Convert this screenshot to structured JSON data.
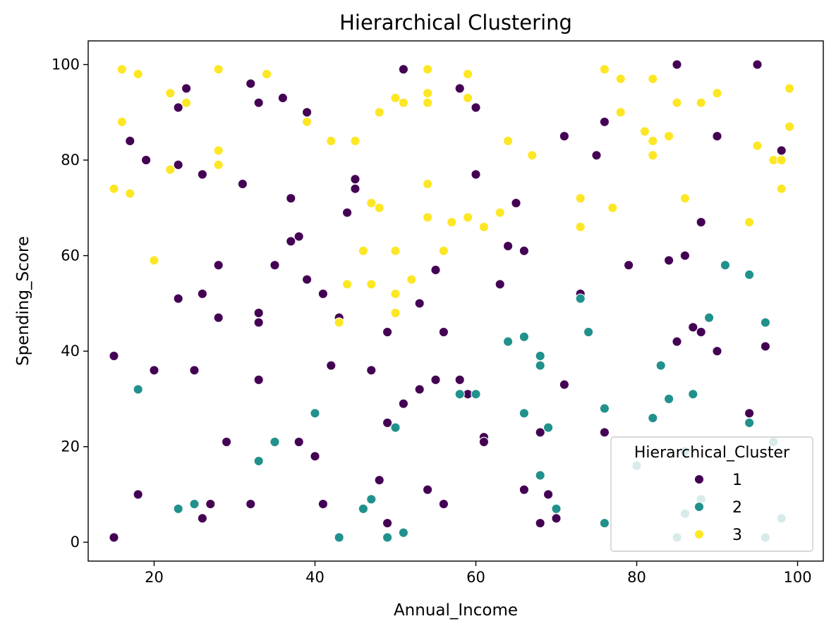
{
  "chart_data": {
    "type": "scatter",
    "title": "Hierarchical Clustering",
    "xlabel": "Annual_Income",
    "ylabel": "Spending_Score",
    "xlim": [
      11.8,
      103.2
    ],
    "ylim": [
      -3.95,
      104.95
    ],
    "xticks": [
      20,
      40,
      60,
      80,
      100
    ],
    "yticks": [
      0,
      20,
      40,
      60,
      80,
      100
    ],
    "xtick_labels": [
      "20",
      "40",
      "60",
      "80",
      "100"
    ],
    "ytick_labels": [
      "0",
      "20",
      "40",
      "60",
      "80",
      "100"
    ],
    "grid": false,
    "legend": {
      "title": "Hierarchical_Cluster",
      "placement": "lower-right"
    },
    "series": [
      {
        "name": "1",
        "color": "#440154",
        "points": [
          [
            15,
            1
          ],
          [
            15,
            39
          ],
          [
            17,
            84
          ],
          [
            18,
            10
          ],
          [
            19,
            80
          ],
          [
            20,
            36
          ],
          [
            23,
            91
          ],
          [
            23,
            79
          ],
          [
            23,
            51
          ],
          [
            24,
            95
          ],
          [
            25,
            36
          ],
          [
            26,
            77
          ],
          [
            26,
            52
          ],
          [
            26,
            5
          ],
          [
            27,
            8
          ],
          [
            28,
            58
          ],
          [
            28,
            47
          ],
          [
            29,
            21
          ],
          [
            31,
            75
          ],
          [
            32,
            96
          ],
          [
            32,
            8
          ],
          [
            33,
            92
          ],
          [
            33,
            48
          ],
          [
            33,
            46
          ],
          [
            33,
            34
          ],
          [
            35,
            58
          ],
          [
            36,
            93
          ],
          [
            37,
            72
          ],
          [
            37,
            63
          ],
          [
            38,
            64
          ],
          [
            38,
            21
          ],
          [
            39,
            90
          ],
          [
            39,
            55
          ],
          [
            40,
            18
          ],
          [
            41,
            52
          ],
          [
            41,
            8
          ],
          [
            42,
            37
          ],
          [
            43,
            47
          ],
          [
            44,
            69
          ],
          [
            45,
            76
          ],
          [
            45,
            74
          ],
          [
            47,
            36
          ],
          [
            48,
            13
          ],
          [
            49,
            44
          ],
          [
            49,
            25
          ],
          [
            49,
            4
          ],
          [
            51,
            99
          ],
          [
            51,
            29
          ],
          [
            53,
            50
          ],
          [
            53,
            32
          ],
          [
            54,
            11
          ],
          [
            55,
            57
          ],
          [
            55,
            34
          ],
          [
            56,
            44
          ],
          [
            56,
            8
          ],
          [
            58,
            95
          ],
          [
            58,
            34
          ],
          [
            59,
            31
          ],
          [
            60,
            91
          ],
          [
            60,
            77
          ],
          [
            61,
            22
          ],
          [
            61,
            21
          ],
          [
            63,
            54
          ],
          [
            64,
            62
          ],
          [
            65,
            71
          ],
          [
            66,
            61
          ],
          [
            66,
            11
          ],
          [
            68,
            23
          ],
          [
            68,
            4
          ],
          [
            69,
            10
          ],
          [
            70,
            5
          ],
          [
            71,
            85
          ],
          [
            71,
            33
          ],
          [
            73,
            52
          ],
          [
            75,
            81
          ],
          [
            76,
            88
          ],
          [
            76,
            23
          ],
          [
            79,
            58
          ],
          [
            84,
            59
          ],
          [
            85,
            100
          ],
          [
            85,
            42
          ],
          [
            86,
            60
          ],
          [
            87,
            45
          ],
          [
            88,
            67
          ],
          [
            88,
            44
          ],
          [
            90,
            85
          ],
          [
            90,
            40
          ],
          [
            94,
            27
          ],
          [
            95,
            100
          ],
          [
            96,
            41
          ],
          [
            98,
            82
          ]
        ]
      },
      {
        "name": "2",
        "color": "#21918c",
        "points": [
          [
            18,
            32
          ],
          [
            23,
            7
          ],
          [
            25,
            8
          ],
          [
            33,
            17
          ],
          [
            35,
            21
          ],
          [
            40,
            27
          ],
          [
            43,
            1
          ],
          [
            46,
            7
          ],
          [
            47,
            9
          ],
          [
            49,
            1
          ],
          [
            50,
            24
          ],
          [
            51,
            2
          ],
          [
            58,
            31
          ],
          [
            60,
            31
          ],
          [
            64,
            42
          ],
          [
            66,
            43
          ],
          [
            66,
            27
          ],
          [
            68,
            39
          ],
          [
            68,
            37
          ],
          [
            68,
            14
          ],
          [
            69,
            24
          ],
          [
            70,
            7
          ],
          [
            73,
            51
          ],
          [
            74,
            44
          ],
          [
            76,
            28
          ],
          [
            76,
            4
          ],
          [
            80,
            16
          ],
          [
            82,
            26
          ],
          [
            83,
            37
          ],
          [
            84,
            30
          ],
          [
            85,
            1
          ],
          [
            86,
            19
          ],
          [
            86,
            6
          ],
          [
            87,
            31
          ],
          [
            88,
            9
          ],
          [
            89,
            47
          ],
          [
            91,
            58
          ],
          [
            94,
            56
          ],
          [
            94,
            25
          ],
          [
            96,
            46
          ],
          [
            96,
            1
          ],
          [
            97,
            21
          ],
          [
            98,
            5
          ]
        ]
      },
      {
        "name": "3",
        "color": "#fde725",
        "points": [
          [
            15,
            74
          ],
          [
            16,
            99
          ],
          [
            16,
            88
          ],
          [
            17,
            73
          ],
          [
            18,
            98
          ],
          [
            20,
            59
          ],
          [
            22,
            94
          ],
          [
            22,
            78
          ],
          [
            24,
            92
          ],
          [
            28,
            99
          ],
          [
            28,
            82
          ],
          [
            28,
            79
          ],
          [
            34,
            98
          ],
          [
            39,
            88
          ],
          [
            42,
            84
          ],
          [
            43,
            46
          ],
          [
            44,
            54
          ],
          [
            45,
            84
          ],
          [
            46,
            61
          ],
          [
            47,
            71
          ],
          [
            47,
            54
          ],
          [
            48,
            90
          ],
          [
            48,
            70
          ],
          [
            50,
            93
          ],
          [
            50,
            61
          ],
          [
            50,
            52
          ],
          [
            50,
            48
          ],
          [
            51,
            92
          ],
          [
            52,
            55
          ],
          [
            54,
            99
          ],
          [
            54,
            94
          ],
          [
            54,
            92
          ],
          [
            54,
            75
          ],
          [
            54,
            68
          ],
          [
            56,
            61
          ],
          [
            57,
            67
          ],
          [
            59,
            98
          ],
          [
            59,
            93
          ],
          [
            59,
            68
          ],
          [
            61,
            66
          ],
          [
            63,
            69
          ],
          [
            64,
            84
          ],
          [
            67,
            81
          ],
          [
            73,
            72
          ],
          [
            73,
            66
          ],
          [
            76,
            99
          ],
          [
            77,
            70
          ],
          [
            78,
            97
          ],
          [
            78,
            90
          ],
          [
            81,
            86
          ],
          [
            82,
            97
          ],
          [
            82,
            84
          ],
          [
            82,
            81
          ],
          [
            84,
            85
          ],
          [
            85,
            92
          ],
          [
            86,
            72
          ],
          [
            88,
            92
          ],
          [
            90,
            94
          ],
          [
            94,
            67
          ],
          [
            95,
            83
          ],
          [
            97,
            80
          ],
          [
            98,
            80
          ],
          [
            98,
            74
          ],
          [
            99,
            95
          ],
          [
            99,
            87
          ]
        ]
      }
    ]
  }
}
